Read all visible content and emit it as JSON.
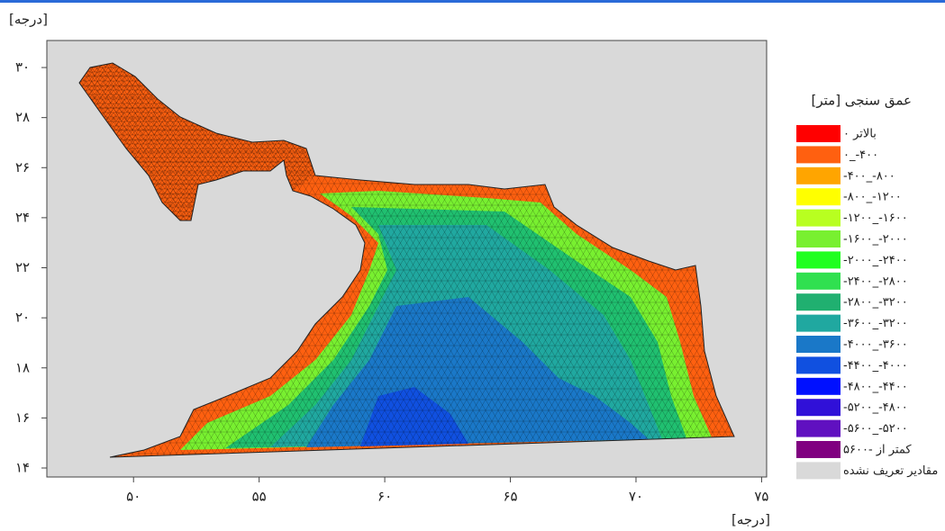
{
  "map": {
    "y_unit_label": "[درجه]",
    "x_unit_label": "[درجه]",
    "xlim": [
      46.55,
      75.2
    ],
    "ylim": [
      13.64,
      31.08
    ],
    "xticks": [
      {
        "value": 50,
        "label": "۵۰"
      },
      {
        "value": 55,
        "label": "۵۵"
      },
      {
        "value": 60,
        "label": "۶۰"
      },
      {
        "value": 65,
        "label": "۶۵"
      },
      {
        "value": 70,
        "label": "۷۰"
      },
      {
        "value": 75,
        "label": "۷۵"
      }
    ],
    "yticks": [
      {
        "value": 14,
        "label": "۱۴"
      },
      {
        "value": 16,
        "label": "۱۶"
      },
      {
        "value": 18,
        "label": "۱۸"
      },
      {
        "value": 20,
        "label": "۲۰"
      },
      {
        "value": 22,
        "label": "۲۲"
      },
      {
        "value": 24,
        "label": "۲۴"
      },
      {
        "value": 26,
        "label": "۲۶"
      },
      {
        "value": 28,
        "label": "۲۸"
      },
      {
        "value": 30,
        "label": "۳۰"
      }
    ],
    "legend": {
      "title": "عمق سنجی [متر]",
      "items": [
        {
          "label": "بالاتر ۰",
          "color": "#ff0000"
        },
        {
          "label": "۰_-۴۰۰",
          "color": "#ff6010"
        },
        {
          "label": "-۴۰۰_-۸۰۰",
          "color": "#ffa500"
        },
        {
          "label": "-۸۰۰_-۱۲۰۰",
          "color": "#ffff00"
        },
        {
          "label": "-۱۲۰۰_-۱۶۰۰",
          "color": "#b8ff20"
        },
        {
          "label": "-۱۶۰۰_-۲۰۰۰",
          "color": "#78f030"
        },
        {
          "label": "-۲۰۰۰_-۲۴۰۰",
          "color": "#20ff20"
        },
        {
          "label": "-۲۴۰۰_-۲۸۰۰",
          "color": "#30e050"
        },
        {
          "label": "-۲۸۰۰_-۳۲۰۰",
          "color": "#20b070"
        },
        {
          "label": "-۳۶۰۰_-۳۲۰۰",
          "color": "#20a8a0"
        },
        {
          "label": "-۴۰۰۰_-۳۶۰۰",
          "color": "#1a78c8"
        },
        {
          "label": "-۴۴۰۰_-۴۰۰۰",
          "color": "#1050e0"
        },
        {
          "label": "-۴۸۰۰_-۴۴۰۰",
          "color": "#0010ff"
        },
        {
          "label": "-۵۲۰۰_-۴۸۰۰",
          "color": "#3010d8"
        },
        {
          "label": "-۵۶۰۰_-۵۲۰۰",
          "color": "#6010c0"
        },
        {
          "label": "کمتر از -۵۶۰۰",
          "color": "#800080"
        },
        {
          "label": "مقادیر تعریف نشده",
          "color": "#d9d9d9"
        }
      ]
    }
  }
}
